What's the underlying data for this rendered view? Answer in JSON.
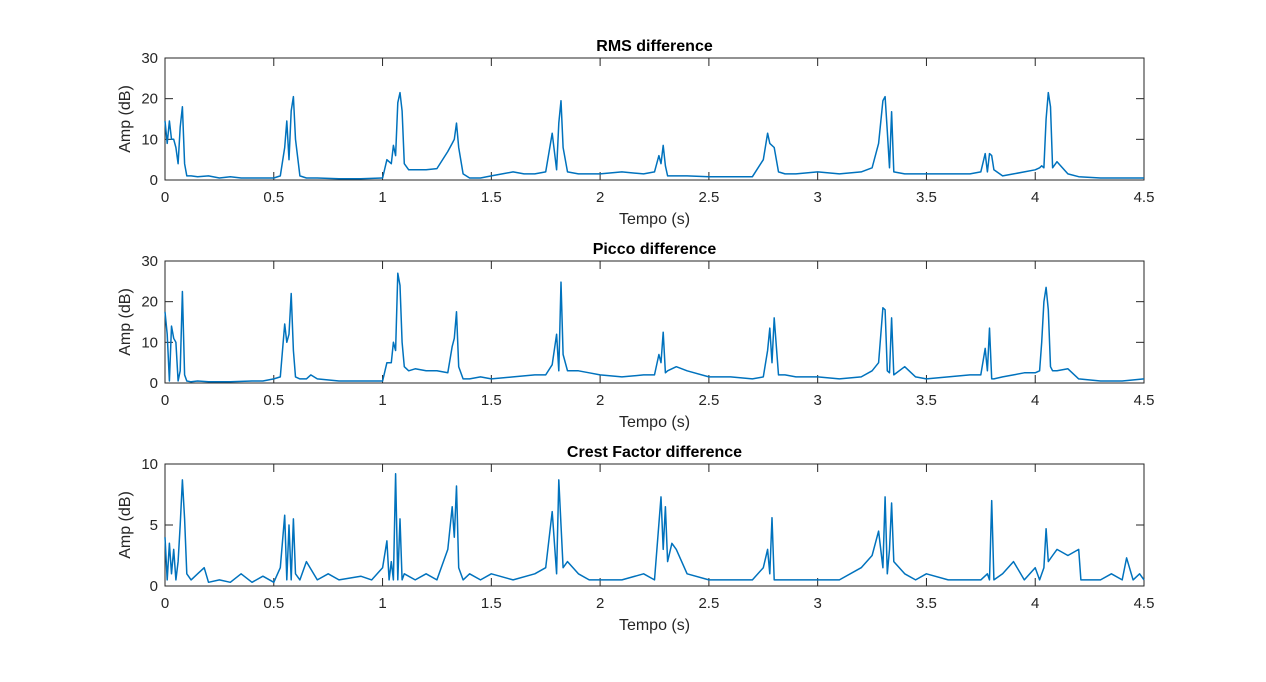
{
  "figure": {
    "background": "#ffffff",
    "line_color": "#0072BD",
    "axis_color": "#262626"
  },
  "chart_data": [
    {
      "type": "line",
      "title": "RMS difference",
      "xlabel": "Tempo (s)",
      "ylabel": "Amp (dB)",
      "xlim": [
        0,
        4.5
      ],
      "ylim": [
        0,
        30
      ],
      "xticks": [
        0,
        0.5,
        1,
        1.5,
        2,
        2.5,
        3,
        3.5,
        4,
        4.5
      ],
      "xtick_labels": [
        "0",
        "0.5",
        "1",
        "1.5",
        "2",
        "2.5",
        "3",
        "3.5",
        "4",
        "4.5"
      ],
      "yticks": [
        0,
        10,
        20,
        30
      ],
      "ytick_labels": [
        "0",
        "10",
        "20",
        "30"
      ],
      "grid": false,
      "box": true,
      "series": [
        {
          "x": [
            0.0,
            0.01,
            0.02,
            0.03,
            0.04,
            0.05,
            0.06,
            0.07,
            0.08,
            0.09,
            0.1,
            0.12,
            0.15,
            0.2,
            0.25,
            0.3,
            0.35,
            0.4,
            0.45,
            0.5,
            0.53,
            0.55,
            0.56,
            0.57,
            0.58,
            0.59,
            0.6,
            0.62,
            0.65,
            0.7,
            0.8,
            0.9,
            1.0,
            1.02,
            1.04,
            1.05,
            1.06,
            1.07,
            1.08,
            1.09,
            1.1,
            1.12,
            1.15,
            1.2,
            1.25,
            1.3,
            1.32,
            1.33,
            1.34,
            1.35,
            1.37,
            1.4,
            1.45,
            1.5,
            1.55,
            1.6,
            1.65,
            1.7,
            1.75,
            1.78,
            1.8,
            1.81,
            1.82,
            1.83,
            1.85,
            1.9,
            2.0,
            2.1,
            2.2,
            2.25,
            2.27,
            2.28,
            2.29,
            2.3,
            2.31,
            2.35,
            2.4,
            2.5,
            2.6,
            2.7,
            2.75,
            2.77,
            2.78,
            2.8,
            2.82,
            2.85,
            2.9,
            3.0,
            3.1,
            3.2,
            3.25,
            3.28,
            3.3,
            3.31,
            3.32,
            3.33,
            3.34,
            3.35,
            3.4,
            3.5,
            3.6,
            3.7,
            3.75,
            3.77,
            3.78,
            3.79,
            3.8,
            3.81,
            3.85,
            3.9,
            3.95,
            4.0,
            4.02,
            4.03,
            4.04,
            4.05,
            4.06,
            4.07,
            4.08,
            4.1,
            4.15,
            4.2,
            4.3,
            4.4,
            4.5
          ],
          "y": [
            14.5,
            9.0,
            14.5,
            10.0,
            10.0,
            8.0,
            4.0,
            13.0,
            18.0,
            4.0,
            1.0,
            1.0,
            0.8,
            1.0,
            0.5,
            0.8,
            0.5,
            0.5,
            0.5,
            0.5,
            1.0,
            8.0,
            14.5,
            5.0,
            17.0,
            20.5,
            10.0,
            1.0,
            0.5,
            0.5,
            0.3,
            0.3,
            0.5,
            5.0,
            4.0,
            8.5,
            6.0,
            19.0,
            21.5,
            17.0,
            4.0,
            2.5,
            2.5,
            2.5,
            2.8,
            7.0,
            9.0,
            10.0,
            14.0,
            8.0,
            1.5,
            0.5,
            0.5,
            1.0,
            1.5,
            2.0,
            1.5,
            1.5,
            2.0,
            11.5,
            2.5,
            14.0,
            19.5,
            8.0,
            2.0,
            1.5,
            1.5,
            2.0,
            1.5,
            2.0,
            6.0,
            4.0,
            8.5,
            3.5,
            1.0,
            1.0,
            1.0,
            0.8,
            0.8,
            0.8,
            5.0,
            11.5,
            9.0,
            8.0,
            2.0,
            1.5,
            1.5,
            2.0,
            1.5,
            2.0,
            3.0,
            9.0,
            19.5,
            20.5,
            12.0,
            3.0,
            16.8,
            2.0,
            1.5,
            1.5,
            1.5,
            1.5,
            2.0,
            6.5,
            2.0,
            6.5,
            6.0,
            2.5,
            1.0,
            1.5,
            2.0,
            2.5,
            3.0,
            3.5,
            3.0,
            15.0,
            21.5,
            18.0,
            3.0,
            4.5,
            1.5,
            0.8,
            0.5,
            0.5,
            0.5
          ]
        }
      ]
    },
    {
      "type": "line",
      "title": "Picco difference",
      "xlabel": "Tempo (s)",
      "ylabel": "Amp (dB)",
      "xlim": [
        0,
        4.5
      ],
      "ylim": [
        0,
        30
      ],
      "xticks": [
        0,
        0.5,
        1,
        1.5,
        2,
        2.5,
        3,
        3.5,
        4,
        4.5
      ],
      "xtick_labels": [
        "0",
        "0.5",
        "1",
        "1.5",
        "2",
        "2.5",
        "3",
        "3.5",
        "4",
        "4.5"
      ],
      "yticks": [
        0,
        10,
        20,
        30
      ],
      "ytick_labels": [
        "0",
        "10",
        "20",
        "30"
      ],
      "grid": false,
      "box": true,
      "series": [
        {
          "x": [
            0.0,
            0.01,
            0.02,
            0.03,
            0.04,
            0.05,
            0.06,
            0.07,
            0.08,
            0.09,
            0.1,
            0.12,
            0.15,
            0.2,
            0.3,
            0.4,
            0.45,
            0.5,
            0.53,
            0.55,
            0.56,
            0.57,
            0.58,
            0.59,
            0.6,
            0.62,
            0.65,
            0.67,
            0.7,
            0.8,
            0.9,
            1.0,
            1.02,
            1.04,
            1.05,
            1.06,
            1.07,
            1.08,
            1.09,
            1.1,
            1.12,
            1.15,
            1.2,
            1.25,
            1.3,
            1.32,
            1.33,
            1.34,
            1.35,
            1.37,
            1.4,
            1.45,
            1.5,
            1.6,
            1.7,
            1.75,
            1.78,
            1.8,
            1.81,
            1.82,
            1.83,
            1.85,
            1.9,
            1.95,
            2.0,
            2.1,
            2.2,
            2.25,
            2.27,
            2.28,
            2.29,
            2.3,
            2.31,
            2.35,
            2.4,
            2.5,
            2.6,
            2.7,
            2.75,
            2.77,
            2.78,
            2.79,
            2.8,
            2.82,
            2.85,
            2.9,
            3.0,
            3.1,
            3.2,
            3.25,
            3.28,
            3.3,
            3.31,
            3.32,
            3.33,
            3.34,
            3.35,
            3.4,
            3.45,
            3.5,
            3.6,
            3.7,
            3.75,
            3.77,
            3.78,
            3.79,
            3.8,
            3.81,
            3.85,
            3.9,
            3.95,
            4.0,
            4.02,
            4.03,
            4.04,
            4.05,
            4.06,
            4.07,
            4.08,
            4.1,
            4.15,
            4.2,
            4.3,
            4.4,
            4.5
          ],
          "y": [
            17.5,
            12.0,
            0.5,
            14.0,
            11.0,
            10.0,
            0.5,
            3.0,
            22.5,
            2.0,
            0.5,
            0.3,
            0.5,
            0.3,
            0.3,
            0.5,
            0.5,
            1.0,
            1.5,
            14.5,
            10.0,
            12.0,
            22.0,
            8.0,
            1.5,
            1.0,
            1.0,
            2.0,
            1.0,
            0.5,
            0.5,
            0.5,
            5.0,
            5.0,
            10.0,
            8.0,
            27.0,
            24.0,
            10.0,
            4.0,
            3.0,
            3.5,
            3.0,
            3.0,
            2.5,
            9.0,
            11.0,
            17.5,
            4.0,
            1.0,
            1.0,
            1.5,
            1.0,
            1.5,
            2.0,
            2.0,
            4.5,
            12.0,
            3.0,
            24.8,
            7.0,
            3.0,
            3.0,
            2.5,
            2.0,
            1.5,
            2.0,
            2.0,
            7.0,
            5.0,
            12.5,
            2.5,
            3.0,
            4.0,
            3.0,
            1.5,
            1.5,
            1.0,
            1.5,
            8.0,
            13.5,
            5.0,
            16.0,
            2.0,
            2.0,
            1.5,
            1.5,
            1.0,
            1.5,
            3.0,
            5.0,
            18.5,
            18.0,
            3.0,
            2.5,
            16.0,
            2.0,
            4.0,
            1.5,
            1.0,
            1.5,
            2.0,
            2.0,
            8.5,
            3.0,
            13.5,
            1.0,
            1.0,
            1.5,
            2.0,
            2.5,
            2.5,
            3.0,
            10.0,
            20.0,
            23.5,
            18.0,
            4.0,
            3.0,
            3.0,
            3.5,
            1.0,
            0.5,
            0.5,
            1.0
          ]
        }
      ]
    },
    {
      "type": "line",
      "title": "Crest Factor difference",
      "xlabel": "Tempo (s)",
      "ylabel": "Amp (dB)",
      "xlim": [
        0,
        4.5
      ],
      "ylim": [
        0,
        10
      ],
      "xticks": [
        0,
        0.5,
        1,
        1.5,
        2,
        2.5,
        3,
        3.5,
        4,
        4.5
      ],
      "xtick_labels": [
        "0",
        "0.5",
        "1",
        "1.5",
        "2",
        "2.5",
        "3",
        "3.5",
        "4",
        "4.5"
      ],
      "yticks": [
        0,
        5,
        10
      ],
      "ytick_labels": [
        "0",
        "5",
        "10"
      ],
      "grid": false,
      "box": true,
      "series": [
        {
          "x": [
            0.0,
            0.01,
            0.02,
            0.03,
            0.04,
            0.05,
            0.06,
            0.07,
            0.08,
            0.09,
            0.1,
            0.12,
            0.15,
            0.18,
            0.2,
            0.25,
            0.3,
            0.35,
            0.4,
            0.45,
            0.5,
            0.53,
            0.55,
            0.56,
            0.57,
            0.58,
            0.59,
            0.6,
            0.62,
            0.65,
            0.7,
            0.75,
            0.8,
            0.9,
            0.95,
            1.0,
            1.02,
            1.03,
            1.04,
            1.05,
            1.06,
            1.07,
            1.08,
            1.09,
            1.1,
            1.15,
            1.2,
            1.25,
            1.3,
            1.32,
            1.33,
            1.34,
            1.35,
            1.37,
            1.4,
            1.45,
            1.5,
            1.6,
            1.7,
            1.75,
            1.78,
            1.8,
            1.81,
            1.82,
            1.83,
            1.85,
            1.9,
            1.95,
            2.0,
            2.1,
            2.2,
            2.25,
            2.28,
            2.29,
            2.3,
            2.31,
            2.33,
            2.35,
            2.4,
            2.5,
            2.6,
            2.7,
            2.75,
            2.77,
            2.78,
            2.79,
            2.8,
            2.82,
            2.85,
            2.9,
            3.0,
            3.1,
            3.2,
            3.25,
            3.28,
            3.3,
            3.31,
            3.32,
            3.33,
            3.34,
            3.35,
            3.4,
            3.45,
            3.5,
            3.6,
            3.7,
            3.75,
            3.78,
            3.79,
            3.8,
            3.81,
            3.85,
            3.9,
            3.95,
            4.0,
            4.02,
            4.04,
            4.05,
            4.06,
            4.08,
            4.1,
            4.15,
            4.2,
            4.21,
            4.25,
            4.3,
            4.35,
            4.4,
            4.42,
            4.45,
            4.48,
            4.5
          ],
          "y": [
            4.0,
            0.5,
            3.5,
            1.0,
            3.0,
            0.5,
            2.0,
            5.0,
            8.7,
            5.5,
            1.0,
            0.5,
            1.0,
            1.5,
            0.3,
            0.5,
            0.3,
            1.0,
            0.3,
            0.8,
            0.3,
            1.5,
            5.8,
            0.5,
            5.0,
            0.5,
            5.5,
            1.0,
            0.5,
            2.0,
            0.5,
            1.0,
            0.5,
            0.8,
            0.5,
            1.5,
            3.7,
            0.5,
            2.0,
            0.5,
            9.2,
            0.5,
            5.5,
            0.5,
            1.0,
            0.5,
            1.0,
            0.5,
            3.0,
            6.5,
            4.0,
            8.2,
            1.5,
            0.5,
            1.0,
            0.5,
            1.0,
            0.5,
            1.0,
            1.5,
            6.1,
            1.0,
            8.7,
            5.0,
            1.5,
            2.0,
            1.0,
            0.5,
            0.5,
            0.5,
            1.0,
            0.5,
            7.3,
            3.0,
            6.5,
            2.0,
            3.5,
            3.0,
            1.0,
            0.5,
            0.5,
            0.5,
            1.5,
            3.0,
            1.0,
            5.6,
            0.5,
            0.5,
            0.5,
            0.5,
            0.5,
            0.5,
            1.5,
            2.5,
            4.5,
            1.5,
            7.3,
            1.0,
            3.0,
            6.8,
            2.0,
            1.0,
            0.5,
            1.0,
            0.5,
            0.5,
            0.5,
            1.0,
            0.5,
            7.0,
            0.5,
            1.0,
            2.0,
            0.5,
            1.5,
            0.5,
            1.5,
            4.7,
            2.0,
            2.5,
            3.0,
            2.5,
            3.0,
            0.5,
            0.5,
            0.5,
            1.0,
            0.5,
            2.3,
            0.5,
            1.0,
            0.5
          ]
        }
      ]
    }
  ]
}
